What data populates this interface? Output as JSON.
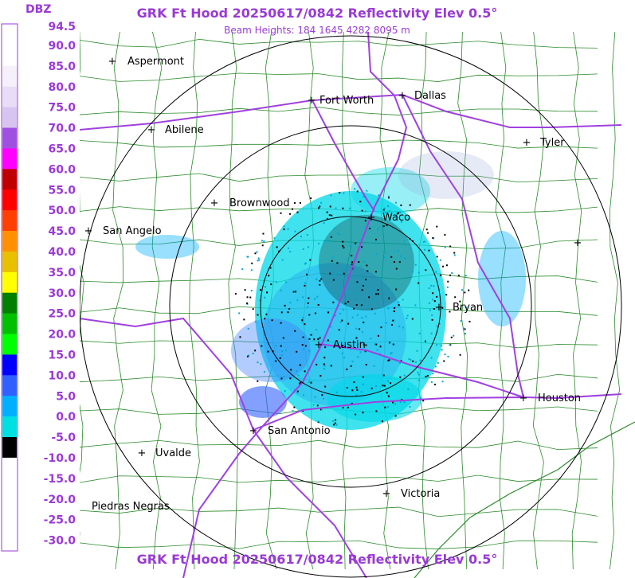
{
  "header": {
    "title": "GRK Ft Hood 20250617/0842 Reflectivity Elev 0.5°",
    "subtitle": "Beam Heights: 184 1645 4282 8095 m"
  },
  "legend": {
    "unit": "DBZ",
    "labels": [
      "94.5",
      "90.0",
      "85.0",
      "80.0",
      "75.0",
      "70.0",
      "65.0",
      "60.0",
      "55.0",
      "50.0",
      "45.0",
      "40.0",
      "35.0",
      "30.0",
      "25.0",
      "20.0",
      "15.0",
      "10.0",
      "5.0",
      "0.0",
      "-5.0",
      "-10.0",
      "-15.0",
      "-20.0",
      "-25.0",
      "-30.0"
    ],
    "colors": [
      "#ffffff",
      "#ffffff",
      "#f6f0fb",
      "#e8dcf6",
      "#d8c4f0",
      "#a050e0",
      "#ff00ff",
      "#c00000",
      "#ff0000",
      "#ff4000",
      "#ff9000",
      "#e8c000",
      "#ffff00",
      "#008000",
      "#00c000",
      "#00ff00",
      "#0000ff",
      "#3060ff",
      "#00b0ff",
      "#00e0e0",
      "#000000",
      "#ffffff",
      "#ffffff",
      "#ffffff",
      "#ffffff"
    ]
  },
  "cities": [
    {
      "name": "Aspermont"
    },
    {
      "name": "Fort Worth"
    },
    {
      "name": "Dallas"
    },
    {
      "name": "Abilene"
    },
    {
      "name": "Tyler"
    },
    {
      "name": "Brownwood"
    },
    {
      "name": "Waco"
    },
    {
      "name": "San Angelo"
    },
    {
      "name": "Bryan"
    },
    {
      "name": "Austin"
    },
    {
      "name": "Houston"
    },
    {
      "name": "San Antonio"
    },
    {
      "name": "Uvalde"
    },
    {
      "name": "Victoria"
    },
    {
      "name": "Piedras Negras"
    }
  ],
  "footer": "GRK Ft Hood 20250617/0842 Reflectivity Elev 0.5°"
}
